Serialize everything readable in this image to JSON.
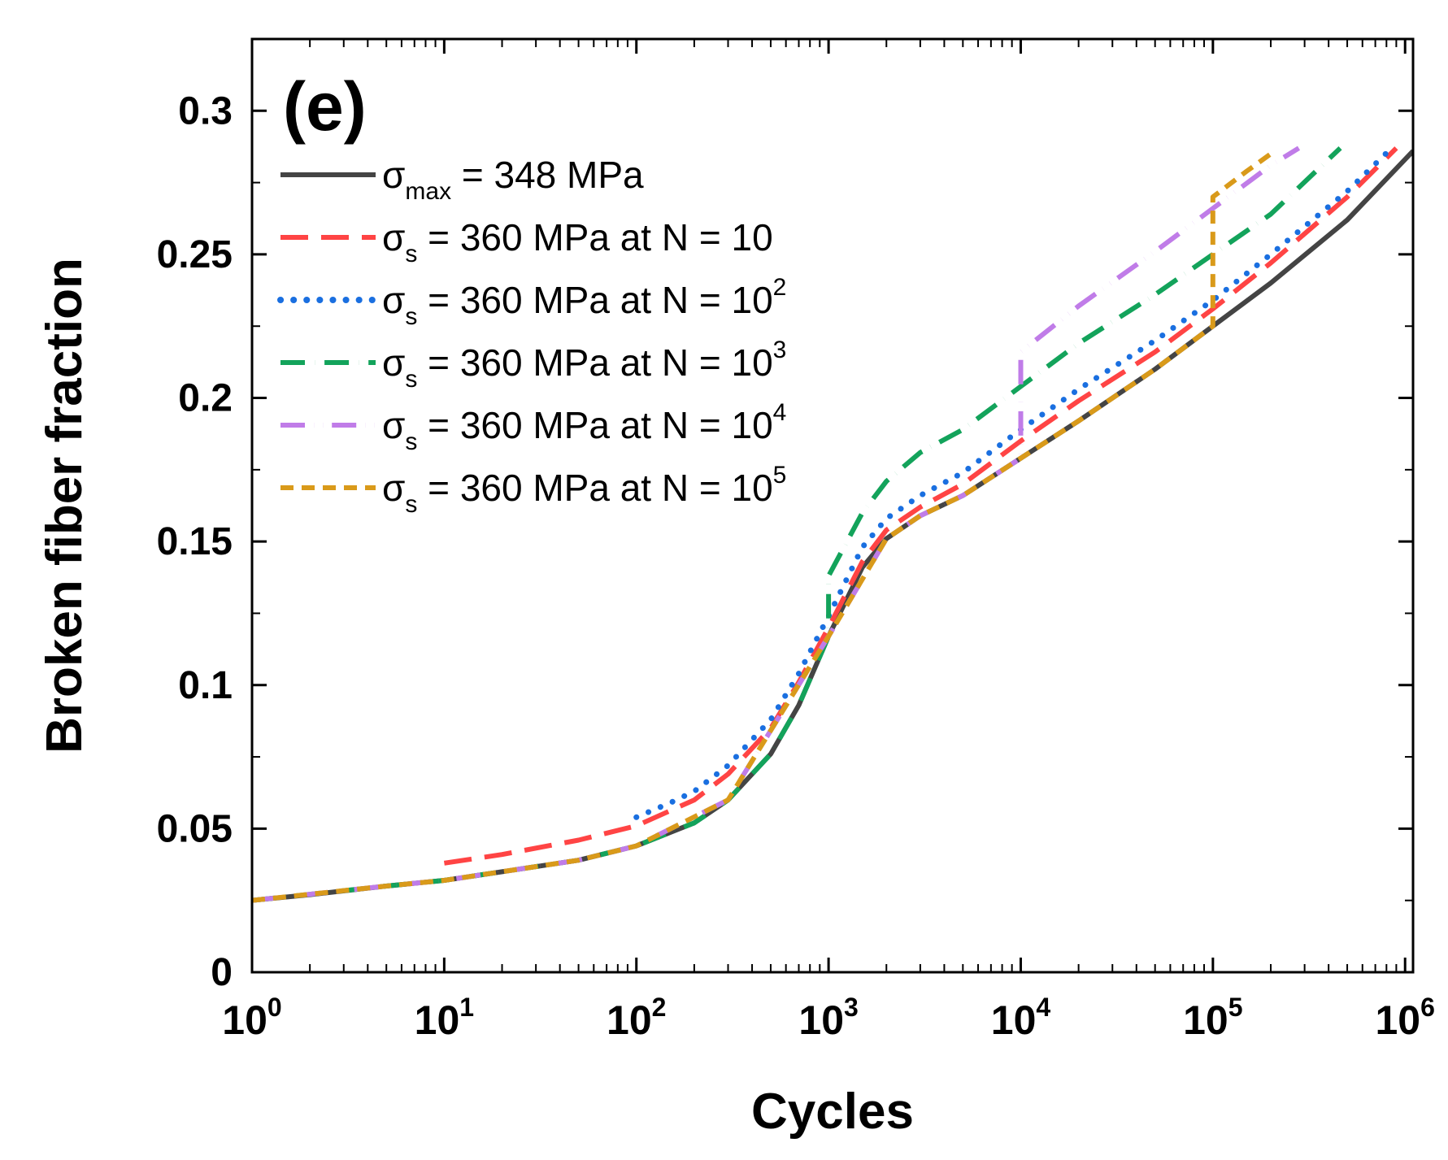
{
  "chart_data": {
    "type": "line",
    "panel_label": "(e)",
    "xlabel": "Cycles",
    "ylabel": "Broken fiber fraction",
    "xscale": "log",
    "xlim": [
      1,
      1100000
    ],
    "ylim": [
      0,
      0.325
    ],
    "x_ticks": [
      {
        "base": "10",
        "exp": "0"
      },
      {
        "base": "10",
        "exp": "1"
      },
      {
        "base": "10",
        "exp": "2"
      },
      {
        "base": "10",
        "exp": "3"
      },
      {
        "base": "10",
        "exp": "4"
      },
      {
        "base": "10",
        "exp": "5"
      },
      {
        "base": "10",
        "exp": "6"
      }
    ],
    "y_ticks": [
      "0",
      "0.05",
      "0.1",
      "0.15",
      "0.2",
      "0.25",
      "0.3"
    ],
    "legend_position": "top-left",
    "series": [
      {
        "name": "σmax = 348 MPa",
        "label_parts": {
          "sym": "σ",
          "sub": "max",
          "text": " = 348 MPa",
          "sup": ""
        },
        "color": "#444444",
        "dash": "solid",
        "x": [
          1,
          2,
          5,
          10,
          20,
          50,
          100,
          200,
          300,
          500,
          700,
          1000,
          1500,
          2000,
          3000,
          5000,
          10000,
          20000,
          50000,
          100000,
          200000,
          500000,
          1100000
        ],
        "y": [
          0.025,
          0.027,
          0.03,
          0.032,
          0.035,
          0.039,
          0.044,
          0.052,
          0.06,
          0.076,
          0.093,
          0.117,
          0.141,
          0.151,
          0.159,
          0.166,
          0.179,
          0.192,
          0.21,
          0.225,
          0.24,
          0.262,
          0.286
        ]
      },
      {
        "name": "σs = 360 MPa at N = 10",
        "label_parts": {
          "sym": "σ",
          "sub": "s",
          "text": " = 360 MPa at N = 10",
          "sup": ""
        },
        "color": "#ff4444",
        "dash": "long-dash",
        "x": [
          10,
          20,
          50,
          100,
          200,
          300,
          500,
          700,
          1000,
          1500,
          2000,
          3000,
          5000,
          10000,
          20000,
          50000,
          100000,
          200000,
          500000,
          900000
        ],
        "y": [
          0.038,
          0.041,
          0.046,
          0.051,
          0.06,
          0.069,
          0.085,
          0.101,
          0.12,
          0.143,
          0.154,
          0.162,
          0.17,
          0.185,
          0.199,
          0.216,
          0.231,
          0.247,
          0.27,
          0.287
        ]
      },
      {
        "name": "σs = 360 MPa at N = 10^2",
        "label_parts": {
          "sym": "σ",
          "sub": "s",
          "text": " = 360 MPa at N = 10",
          "sup": "2"
        },
        "color": "#1a6fe0",
        "dash": "dot",
        "x": [
          100,
          150,
          200,
          300,
          500,
          700,
          1000,
          1500,
          2000,
          3000,
          5000,
          10000,
          20000,
          50000,
          100000,
          200000,
          500000,
          850000
        ],
        "y": [
          0.054,
          0.059,
          0.063,
          0.072,
          0.088,
          0.104,
          0.124,
          0.148,
          0.158,
          0.166,
          0.174,
          0.189,
          0.203,
          0.22,
          0.234,
          0.25,
          0.272,
          0.287
        ]
      },
      {
        "name": "σs = 360 MPa at N = 10^3",
        "label_parts": {
          "sym": "σ",
          "sub": "s",
          "text": " = 360 MPa at N = 10",
          "sup": "3"
        },
        "color": "#13a35b",
        "dash": "dash-dot",
        "x": [
          1,
          5,
          10,
          50,
          100,
          200,
          300,
          500,
          700,
          1000,
          1000,
          1500,
          2000,
          3000,
          5000,
          10000,
          20000,
          50000,
          100000,
          200000,
          460000
        ],
        "y": [
          0.025,
          0.03,
          0.032,
          0.039,
          0.044,
          0.052,
          0.06,
          0.076,
          0.093,
          0.117,
          0.138,
          0.16,
          0.171,
          0.181,
          0.189,
          0.204,
          0.219,
          0.236,
          0.25,
          0.264,
          0.287
        ]
      },
      {
        "name": "σs = 360 MPa at N = 10^4",
        "label_parts": {
          "sym": "σ",
          "sub": "s",
          "text": " = 360 MPa at N = 10",
          "sup": "4"
        },
        "color": "#c07ce8",
        "dash": "dash-dot-dot",
        "x": [
          1,
          5,
          10,
          50,
          100,
          300,
          1000,
          2000,
          3000,
          5000,
          10000,
          10000,
          20000,
          50000,
          100000,
          200000,
          280000
        ],
        "y": [
          0.025,
          0.03,
          0.032,
          0.039,
          0.044,
          0.06,
          0.117,
          0.151,
          0.159,
          0.166,
          0.179,
          0.216,
          0.232,
          0.251,
          0.266,
          0.281,
          0.287
        ]
      },
      {
        "name": "σs = 360 MPa at N = 10^5",
        "label_parts": {
          "sym": "σ",
          "sub": "s",
          "text": " = 360 MPa at N = 10",
          "sup": "5"
        },
        "color": "#d99a1a",
        "dash": "short-dash",
        "x": [
          1,
          5,
          10,
          50,
          100,
          300,
          1000,
          2000,
          3000,
          5000,
          10000,
          20000,
          50000,
          100000,
          100000,
          150000,
          200000
        ],
        "y": [
          0.025,
          0.03,
          0.032,
          0.039,
          0.044,
          0.06,
          0.117,
          0.151,
          0.159,
          0.166,
          0.179,
          0.192,
          0.21,
          0.225,
          0.27,
          0.279,
          0.285
        ]
      }
    ]
  }
}
